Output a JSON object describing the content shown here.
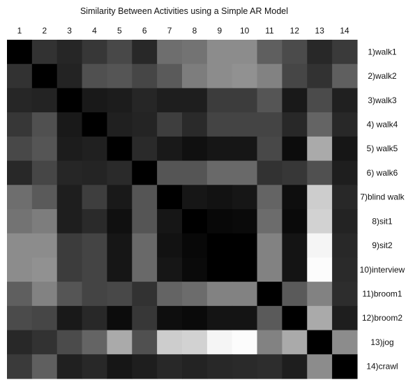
{
  "chart_data": {
    "type": "heatmap",
    "title": "Similarity Between Activities using a Simple AR Model",
    "column_labels": [
      "1",
      "2",
      "3",
      "4",
      "5",
      "6",
      "7",
      "8",
      "9",
      "10",
      "11",
      "12",
      "13",
      "14"
    ],
    "row_labels": [
      "1)walk1",
      "2)walk2",
      "3)walk3",
      "4) walk4",
      "5) walk5",
      "6) walk6",
      "7)blind walk",
      "8)sit1",
      "9)sit2",
      "10)interview",
      "11)broom1",
      "12)broom2",
      "13)jog",
      "14)crawl"
    ],
    "value_encoding": "grayscale, 0 = black (most similar), 255 = white (least similar)",
    "values": [
      [
        0,
        50,
        38,
        55,
        72,
        40,
        110,
        115,
        140,
        140,
        95,
        75,
        40,
        58
      ],
      [
        50,
        0,
        35,
        80,
        85,
        70,
        90,
        125,
        140,
        145,
        130,
        70,
        50,
        95
      ],
      [
        38,
        35,
        0,
        25,
        28,
        38,
        30,
        30,
        60,
        60,
        85,
        25,
        75,
        32
      ],
      [
        55,
        80,
        25,
        0,
        32,
        36,
        62,
        42,
        68,
        68,
        68,
        40,
        100,
        40
      ],
      [
        72,
        85,
        28,
        32,
        0,
        42,
        25,
        16,
        22,
        22,
        72,
        12,
        170,
        22
      ],
      [
        40,
        70,
        38,
        36,
        42,
        0,
        85,
        85,
        105,
        105,
        50,
        55,
        80,
        30
      ],
      [
        110,
        90,
        30,
        62,
        25,
        85,
        0,
        22,
        18,
        22,
        100,
        14,
        205,
        40
      ],
      [
        115,
        125,
        30,
        42,
        16,
        85,
        22,
        0,
        8,
        10,
        108,
        10,
        210,
        35
      ],
      [
        140,
        140,
        60,
        68,
        22,
        105,
        18,
        8,
        0,
        0,
        130,
        20,
        245,
        40
      ],
      [
        140,
        145,
        60,
        68,
        22,
        105,
        22,
        10,
        0,
        0,
        130,
        20,
        252,
        42
      ],
      [
        95,
        130,
        85,
        68,
        72,
        50,
        100,
        108,
        130,
        130,
        0,
        90,
        130,
        45
      ],
      [
        75,
        70,
        25,
        40,
        12,
        55,
        14,
        10,
        20,
        20,
        90,
        0,
        170,
        30
      ],
      [
        40,
        50,
        75,
        100,
        170,
        80,
        205,
        210,
        245,
        252,
        130,
        170,
        0,
        140
      ],
      [
        58,
        95,
        32,
        40,
        22,
        30,
        40,
        35,
        40,
        42,
        45,
        30,
        140,
        0
      ]
    ]
  }
}
